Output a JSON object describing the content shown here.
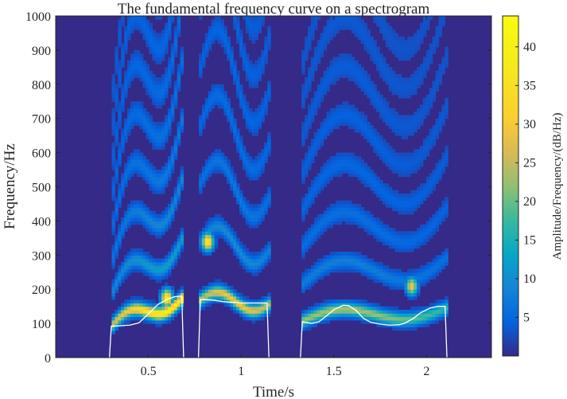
{
  "chart_data": {
    "type": "heatmap",
    "title": "The fundamental frequency curve on a spectrogram",
    "xlabel": "Time/s",
    "ylabel": "Frequency/Hz",
    "xlim": [
      0,
      2.35
    ],
    "ylim": [
      0,
      1000
    ],
    "x_ticks": [
      0.5,
      1,
      1.5,
      2
    ],
    "x_tick_labels": [
      "0.5",
      "1",
      "1.5",
      "2"
    ],
    "y_ticks": [
      0,
      100,
      200,
      300,
      400,
      500,
      600,
      700,
      800,
      900,
      1000
    ],
    "y_tick_labels": [
      "0",
      "100",
      "200",
      "300",
      "400",
      "500",
      "600",
      "700",
      "800",
      "900",
      "1000"
    ],
    "colorbar": {
      "label": "Amplitude/Frequency/(dB/Hz)",
      "range": [
        0,
        44
      ],
      "ticks": [
        5,
        10,
        15,
        20,
        25,
        30,
        35,
        40
      ],
      "tick_labels": [
        "5",
        "10",
        "15",
        "20",
        "25",
        "30",
        "35",
        "40"
      ],
      "colormap": "parula"
    },
    "voiced_segments": [
      {
        "t_start": 0.3,
        "t_end": 0.69
      },
      {
        "t_start": 0.78,
        "t_end": 1.16
      },
      {
        "t_start": 1.32,
        "t_end": 2.12
      }
    ],
    "f0_curve": {
      "color": "#ffffff",
      "segments": [
        [
          [
            0.29,
            0
          ],
          [
            0.3,
            92
          ],
          [
            0.4,
            95
          ],
          [
            0.45,
            102
          ],
          [
            0.5,
            128
          ],
          [
            0.55,
            155
          ],
          [
            0.6,
            170
          ],
          [
            0.64,
            178
          ],
          [
            0.67,
            180
          ],
          [
            0.68,
            180
          ],
          [
            0.69,
            0
          ]
        ],
        [
          [
            0.77,
            0
          ],
          [
            0.78,
            170
          ],
          [
            0.85,
            168
          ],
          [
            0.9,
            164
          ],
          [
            0.95,
            162
          ],
          [
            1.0,
            160
          ],
          [
            1.05,
            160
          ],
          [
            1.1,
            160
          ],
          [
            1.14,
            160
          ],
          [
            1.15,
            0
          ]
        ],
        [
          [
            1.32,
            0
          ],
          [
            1.33,
            105
          ],
          [
            1.38,
            100
          ],
          [
            1.42,
            105
          ],
          [
            1.46,
            122
          ],
          [
            1.5,
            140
          ],
          [
            1.55,
            153
          ],
          [
            1.58,
            152
          ],
          [
            1.62,
            138
          ],
          [
            1.66,
            115
          ],
          [
            1.7,
            103
          ],
          [
            1.75,
            98
          ],
          [
            1.8,
            95
          ],
          [
            1.85,
            96
          ],
          [
            1.88,
            100
          ],
          [
            1.93,
            115
          ],
          [
            1.97,
            132
          ],
          [
            2.02,
            145
          ],
          [
            2.06,
            150
          ],
          [
            2.1,
            150
          ],
          [
            2.11,
            0
          ]
        ]
      ]
    },
    "harmonic_ridges": [
      {
        "segment": 0,
        "t_start": 0.3,
        "t_end": 0.69,
        "f0_start": 92,
        "f0_end": 180,
        "peak_t": 0.6,
        "peak_db": 38
      },
      {
        "segment": 1,
        "t_start": 0.78,
        "t_end": 1.16,
        "f0_start": 170,
        "f0_end": 160,
        "peak_t": 0.97,
        "peak_db": 28
      },
      {
        "segment": 2,
        "t_start": 1.32,
        "t_end": 2.12,
        "f0_start": 105,
        "f0_end": 150,
        "peak_t": 1.55,
        "peak_db": 22
      }
    ],
    "hot_spots": [
      {
        "t": 0.82,
        "f": 340,
        "db": 38
      },
      {
        "t": 1.92,
        "f": 210,
        "db": 30
      },
      {
        "t": 0.6,
        "f": 175,
        "db": 40
      }
    ],
    "background_db": 2
  }
}
